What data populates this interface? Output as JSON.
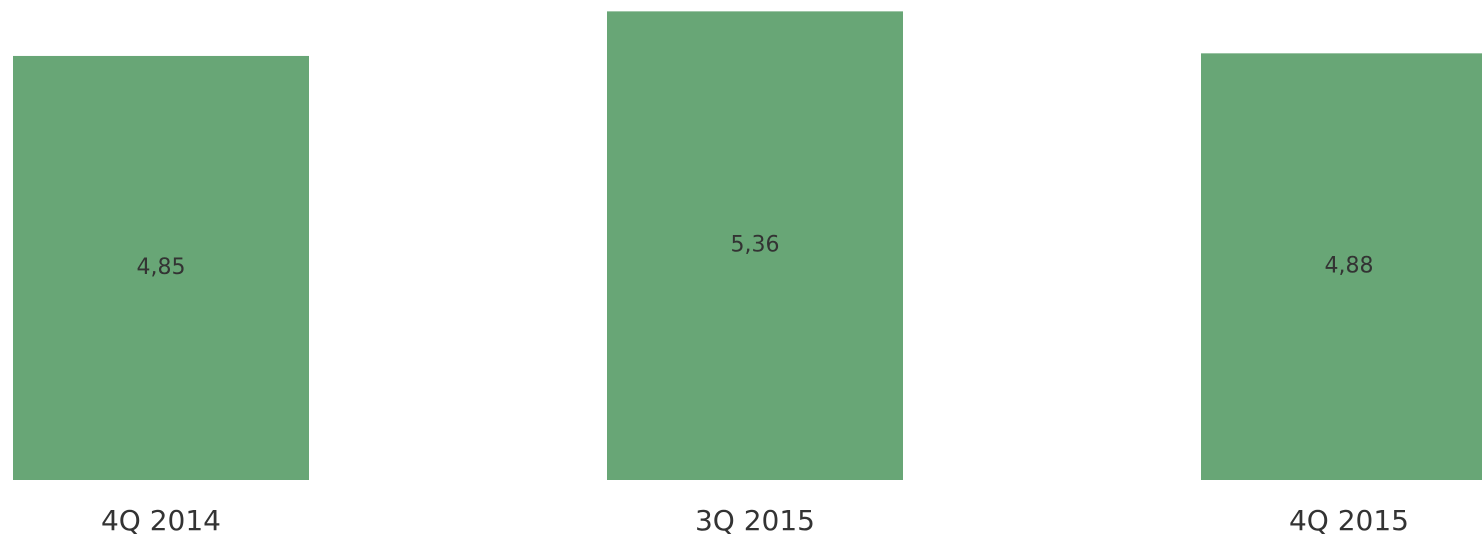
{
  "chart_data": {
    "type": "bar",
    "categories": [
      "4Q 2014",
      "3Q 2015",
      "4Q 2015"
    ],
    "values": [
      4.85,
      5.36,
      4.88
    ],
    "value_labels": [
      "4,85",
      "5,36",
      "4,88"
    ],
    "color": "#68a676",
    "ylim": [
      0,
      5.49
    ]
  }
}
